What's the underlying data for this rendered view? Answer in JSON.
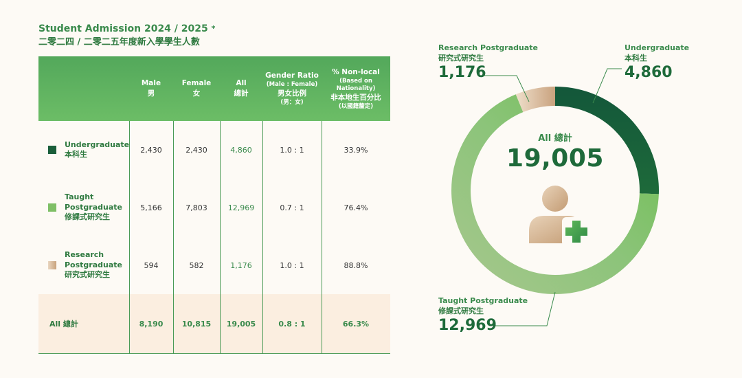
{
  "title": {
    "en": "Student Admission 2024 / 2025",
    "star": "*",
    "zh": "二零二四 / 二零二五年度新入學學生人數"
  },
  "table": {
    "headers": {
      "male": [
        "Male",
        "男"
      ],
      "female": [
        "Female",
        "女"
      ],
      "all": [
        "All",
        "總計"
      ],
      "ratio": [
        "Gender Ratio",
        "(Male : Female)",
        "男女比例",
        "(男：女)"
      ],
      "nonlocal": [
        "% Non-local",
        "(Based on",
        "Nationality)",
        "非本地生百分比",
        "(以國籍釐定)"
      ]
    },
    "rows": [
      {
        "label": [
          "Undergraduate",
          "本科生"
        ],
        "color": "#1a5e3a",
        "male": "2,430",
        "female": "2,430",
        "all": "4,860",
        "ratio": "1.0 : 1",
        "nonlocal": "33.9%"
      },
      {
        "label": [
          "Taught",
          "Postgraduate",
          "修課式研究生"
        ],
        "color": "#7fbf66",
        "male": "5,166",
        "female": "7,803",
        "all": "12,969",
        "ratio": "0.7 : 1",
        "nonlocal": "76.4%"
      },
      {
        "label": [
          "Research",
          "Postgraduate",
          "研究式研究生"
        ],
        "color": "#d9bc9c",
        "male": "594",
        "female": "582",
        "all": "1,176",
        "ratio": "1.0 : 1",
        "nonlocal": "88.8%"
      }
    ],
    "total": {
      "label": "All 總計",
      "male": "8,190",
      "female": "10,815",
      "all": "19,005",
      "ratio": "0.8 : 1",
      "nonlocal": "66.3%"
    }
  },
  "chart_data": {
    "type": "pie",
    "categories": [
      "Undergraduate",
      "Taught Postgraduate",
      "Research Postgraduate"
    ],
    "values": [
      4860,
      12969,
      1176
    ],
    "colors": [
      "#1a5e3a",
      "#7fbf66",
      "#d9bc9c"
    ],
    "labels": [
      {
        "en": "Undergraduate",
        "zh": "本科生",
        "value": "4,860"
      },
      {
        "en": "Taught Postgraduate",
        "zh": "修課式研究生",
        "value": "12,969"
      },
      {
        "en": "Research Postgraduate",
        "zh": "研究式研究生",
        "value": "1,176"
      }
    ],
    "center": {
      "label": "All 總計",
      "value": "19,005"
    }
  },
  "icons": [
    "add-user-icon"
  ]
}
